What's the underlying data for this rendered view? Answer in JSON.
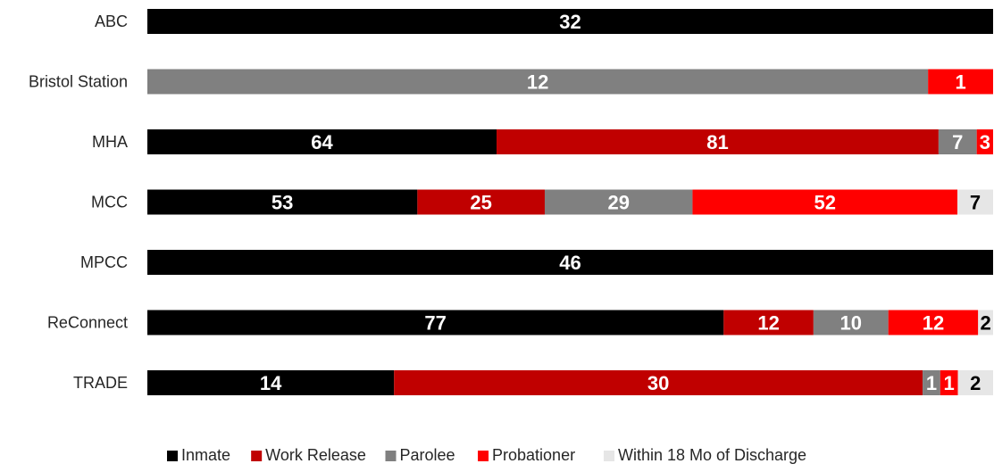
{
  "chart_data": {
    "type": "bar",
    "orientation": "horizontal",
    "stacked": "percent",
    "categories": [
      "ABC",
      "Bristol Station",
      "MHA",
      "MCC",
      "MPCC",
      "ReConnect",
      "TRADE"
    ],
    "series": [
      {
        "name": "Inmate",
        "color": "#000000",
        "label_color": "#ffffff",
        "values": [
          32,
          0,
          64,
          53,
          46,
          77,
          14
        ]
      },
      {
        "name": "Work Release",
        "color": "#c00000",
        "label_color": "#ffffff",
        "values": [
          0,
          0,
          81,
          25,
          0,
          12,
          30
        ]
      },
      {
        "name": "Parolee",
        "color": "#808080",
        "label_color": "#ffffff",
        "values": [
          0,
          12,
          7,
          29,
          0,
          10,
          1
        ]
      },
      {
        "name": "Probationer",
        "color": "#ff0000",
        "label_color": "#ffffff",
        "values": [
          0,
          1,
          3,
          52,
          0,
          12,
          1
        ]
      },
      {
        "name": "Within 18 Mo of Discharge",
        "color": "#e6e6e6",
        "label_color": "#000000",
        "values": [
          0,
          0,
          0,
          7,
          0,
          2,
          2
        ]
      }
    ],
    "legend_position": "bottom",
    "grid": false
  }
}
